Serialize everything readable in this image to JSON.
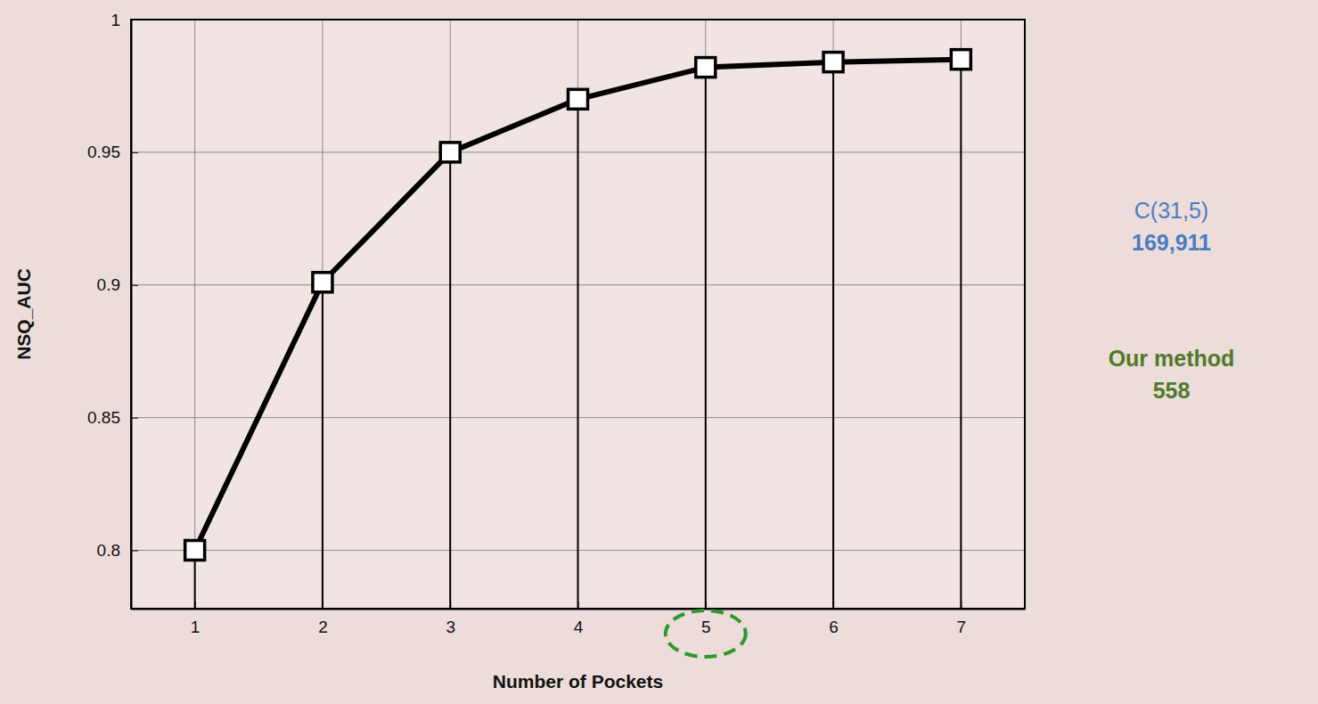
{
  "chart_data": {
    "type": "line",
    "x_label": "Number of Pockets",
    "y_label": "NSQ_AUC",
    "x": [
      1,
      2,
      3,
      4,
      5,
      6,
      7
    ],
    "values": [
      0.8,
      0.901,
      0.95,
      0.97,
      0.982,
      0.984,
      0.985
    ],
    "color": "#000000",
    "marker": "square",
    "xlim": [
      0.5,
      7.5
    ],
    "xticks": [
      1,
      2,
      3,
      4,
      5,
      6,
      7
    ],
    "ylim": [
      0.778,
      1
    ],
    "yticks": [
      0.8,
      0.85,
      0.9,
      0.95,
      1
    ],
    "grid": true,
    "highlight_x": 5,
    "annotations": [
      {
        "text": "C(31,5)",
        "color": "#4a7cc0"
      },
      {
        "text": "169,911",
        "color": "#4a7cc0"
      },
      {
        "text": "Our method",
        "color": "#4f7a28"
      },
      {
        "text": "558",
        "color": "#4f7a28"
      }
    ]
  }
}
